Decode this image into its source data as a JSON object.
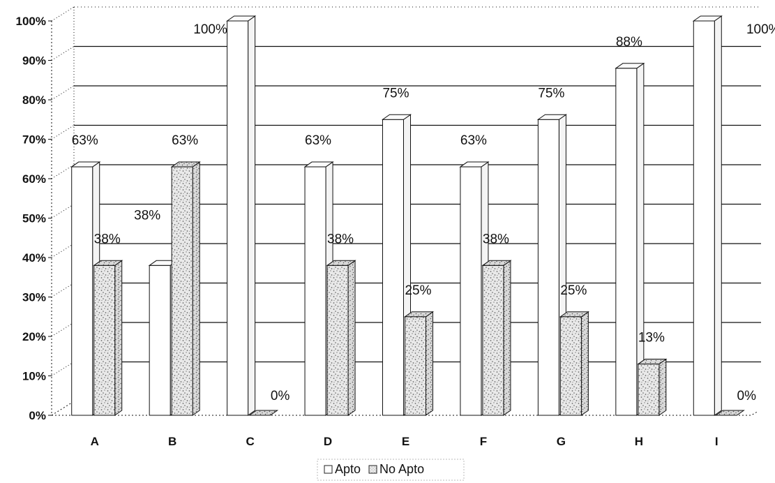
{
  "chart_data": {
    "type": "bar",
    "style": "3d-clustered-column",
    "title": "",
    "xlabel": "",
    "ylabel": "",
    "categories": [
      "A",
      "B",
      "C",
      "D",
      "E",
      "F",
      "G",
      "H",
      "I"
    ],
    "series": [
      {
        "name": "Apto",
        "values": [
          63,
          38,
          100,
          63,
          75,
          63,
          75,
          88,
          100
        ],
        "labels": [
          "63%",
          "",
          "100%",
          "63%",
          "75%",
          "63%",
          "75%",
          "88%",
          "100%"
        ],
        "fill": "plain white"
      },
      {
        "name": "No Apto",
        "values": [
          38,
          63,
          0,
          38,
          25,
          38,
          25,
          13,
          0
        ],
        "labels": [
          "38%",
          "63%",
          "0%",
          "38%",
          "25%",
          "38%",
          "25%",
          "13%",
          "0%"
        ],
        "fill": "speckled grey"
      }
    ],
    "extra_labels": [
      {
        "category": "B",
        "text": "38%"
      }
    ],
    "y_ticks": [
      "0%",
      "10%",
      "20%",
      "30%",
      "40%",
      "50%",
      "60%",
      "70%",
      "80%",
      "90%",
      "100%"
    ],
    "ylim": [
      0,
      100
    ],
    "grid": true,
    "legend": "bottom-center",
    "colors": {
      "grid": "#111111",
      "bar_stroke": "#111111",
      "bar_front": "#ffffff",
      "bar_side": "#f4f4f4",
      "bar_top": "#fafafa",
      "speckle_base": "#e9e9e9",
      "speckle_dots": "#6a6a6a"
    }
  }
}
